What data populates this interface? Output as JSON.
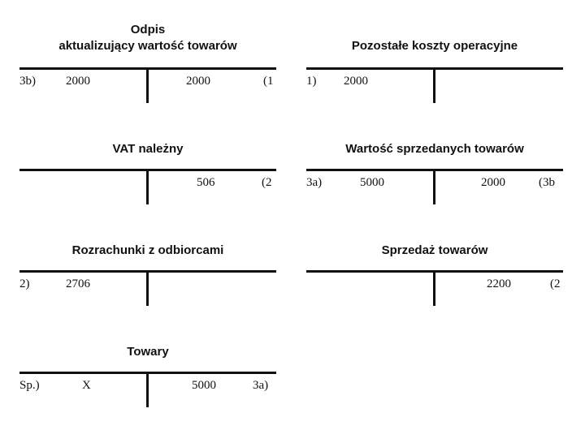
{
  "accounts": [
    {
      "title_line1": "Odpis",
      "title_line2": "aktualizujący wartość towarów",
      "debit_ref": "3b)",
      "debit_value": "2000",
      "credit_value": "2000",
      "credit_ref": "(1"
    },
    {
      "title_line1": "Pozostałe koszty operacyjne",
      "debit_ref": "1)",
      "debit_value": "2000",
      "credit_value": "",
      "credit_ref": ""
    },
    {
      "title_line1": "VAT należny",
      "debit_ref": "",
      "debit_value": "",
      "credit_value": "506",
      "credit_ref": "(2"
    },
    {
      "title_line1": "Wartość sprzedanych towarów",
      "debit_ref": "3a)",
      "debit_value": "5000",
      "credit_value": "2000",
      "credit_ref": "(3b"
    },
    {
      "title_line1": "Rozrachunki z odbiorcami",
      "debit_ref": "2)",
      "debit_value": "2706",
      "credit_value": "",
      "credit_ref": ""
    },
    {
      "title_line1": "Sprzedaż towarów",
      "debit_ref": "",
      "debit_value": "",
      "credit_value": "2200",
      "credit_ref": "(2"
    },
    {
      "title_line1": "Towary",
      "debit_ref": "Sp.)",
      "debit_value": "X",
      "credit_value": "5000",
      "credit_ref": "3a)"
    }
  ]
}
